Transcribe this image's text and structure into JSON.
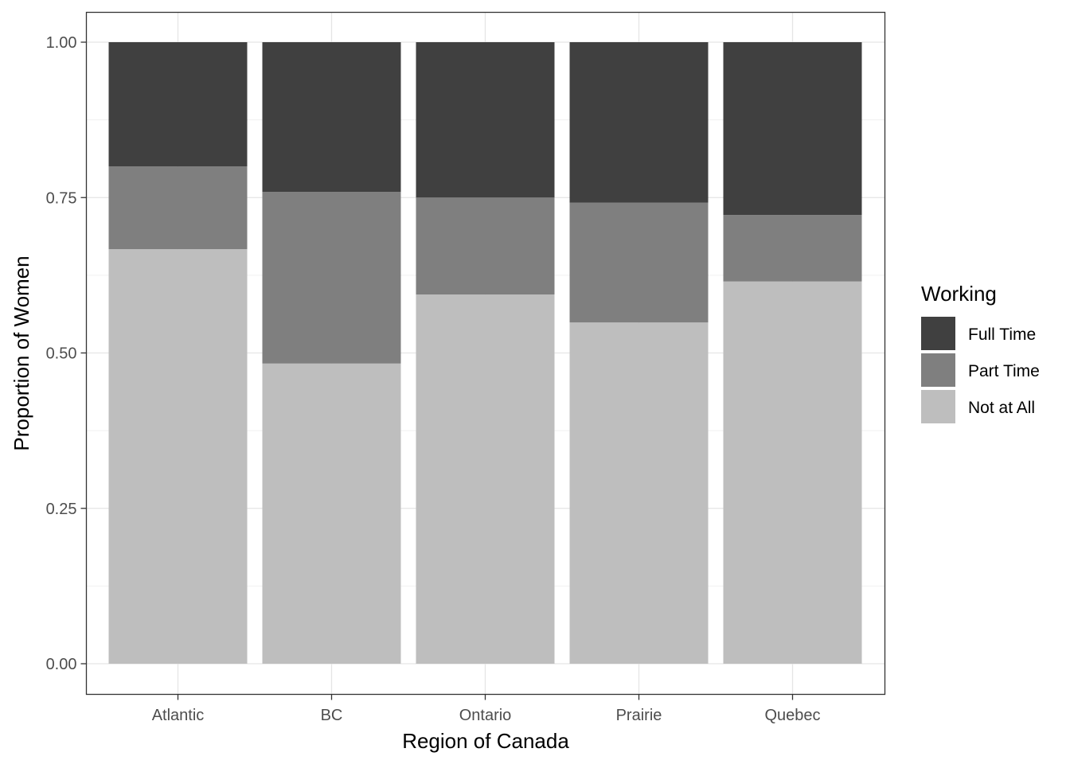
{
  "chart_data": {
    "type": "bar",
    "stacked": true,
    "title": "",
    "xlabel": "Region of Canada",
    "ylabel": "Proportion of Women",
    "ylim": [
      0,
      1
    ],
    "yticks": [
      "0.00",
      "0.25",
      "0.50",
      "0.75",
      "1.00"
    ],
    "grid": true,
    "categories": [
      "Atlantic",
      "BC",
      "Ontario",
      "Prairie",
      "Quebec"
    ],
    "series": [
      {
        "name": "Not at All",
        "color": "#bebebe",
        "values": [
          0.667,
          0.483,
          0.594,
          0.549,
          0.615
        ]
      },
      {
        "name": "Part Time",
        "color": "#7f7f7f",
        "values": [
          0.133,
          0.276,
          0.156,
          0.193,
          0.107
        ]
      },
      {
        "name": "Full Time",
        "color": "#404040",
        "values": [
          0.2,
          0.241,
          0.25,
          0.258,
          0.278
        ]
      }
    ],
    "legend": {
      "title": "Working",
      "position": "right",
      "order": [
        "Full Time",
        "Part Time",
        "Not at All"
      ]
    }
  }
}
